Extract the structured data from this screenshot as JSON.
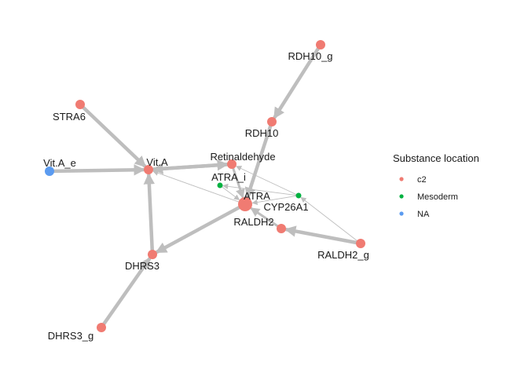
{
  "colors": {
    "c2": "#F07B72",
    "Mesoderm": "#00B140",
    "NA": "#5B9BF0",
    "edge": "#BEBEBE"
  },
  "nodes": [
    {
      "id": "RDH10_g",
      "label": "RDH10_g",
      "group": "c2"
    },
    {
      "id": "RDH10",
      "label": "RDH10",
      "group": "c2"
    },
    {
      "id": "STRA6",
      "label": "STRA6",
      "group": "c2"
    },
    {
      "id": "Vit_A_e",
      "label": "Vit.A_e",
      "group": "NA"
    },
    {
      "id": "Vit_A",
      "label": "Vit.A",
      "group": "c2"
    },
    {
      "id": "Retinaldehyde",
      "label": "Retinaldehyde",
      "group": "c2"
    },
    {
      "id": "ATRA_i",
      "label": "ATRA_i",
      "group": "Mesoderm"
    },
    {
      "id": "ATRA",
      "label": "ATRA",
      "group": "c2"
    },
    {
      "id": "CYP26A1",
      "label": "CYP26A1",
      "group": "Mesoderm"
    },
    {
      "id": "RALDH2",
      "label": "RALDH2",
      "group": "c2"
    },
    {
      "id": "RALDH2_g",
      "label": "RALDH2_g",
      "group": "c2"
    },
    {
      "id": "DHRS3",
      "label": "DHRS3",
      "group": "c2"
    },
    {
      "id": "DHRS3_g",
      "label": "DHRS3_g",
      "group": "c2"
    }
  ],
  "edges": [
    {
      "from": "RDH10_g",
      "to": "RDH10",
      "weight": "thick"
    },
    {
      "from": "RDH10",
      "to": "ATRA",
      "weight": "thick"
    },
    {
      "from": "STRA6",
      "to": "Vit_A",
      "weight": "thick"
    },
    {
      "from": "Vit_A_e",
      "to": "Vit_A",
      "weight": "thick"
    },
    {
      "from": "Vit_A",
      "to": "Retinaldehyde",
      "weight": "thick"
    },
    {
      "from": "Retinaldehyde",
      "to": "Vit_A",
      "weight": "thick"
    },
    {
      "from": "Retinaldehyde",
      "to": "ATRA",
      "weight": "medium"
    },
    {
      "from": "ATRA",
      "to": "Vit_A",
      "weight": "thin"
    },
    {
      "from": "ATRA_i",
      "to": "ATRA",
      "weight": "thin"
    },
    {
      "from": "CYP26A1",
      "to": "ATRA",
      "weight": "thin"
    },
    {
      "from": "CYP26A1",
      "to": "Retinaldehyde",
      "weight": "thin"
    },
    {
      "from": "CYP26A1",
      "to": "ATRA_i",
      "weight": "thin"
    },
    {
      "from": "RALDH2",
      "to": "ATRA",
      "weight": "medium"
    },
    {
      "from": "RALDH2_g",
      "to": "RALDH2",
      "weight": "thick"
    },
    {
      "from": "RALDH2_g",
      "to": "CYP26A1",
      "weight": "thin"
    },
    {
      "from": "ATRA",
      "to": "DHRS3",
      "weight": "thick"
    },
    {
      "from": "DHRS3",
      "to": "Vit_A",
      "weight": "thick"
    },
    {
      "from": "DHRS3_g",
      "to": "DHRS3",
      "weight": "thick"
    }
  ],
  "legend": {
    "title": "Substance location",
    "items": [
      {
        "label": "c2",
        "group": "c2"
      },
      {
        "label": "Mesoderm",
        "group": "Mesoderm"
      },
      {
        "label": "NA",
        "group": "NA"
      }
    ]
  }
}
